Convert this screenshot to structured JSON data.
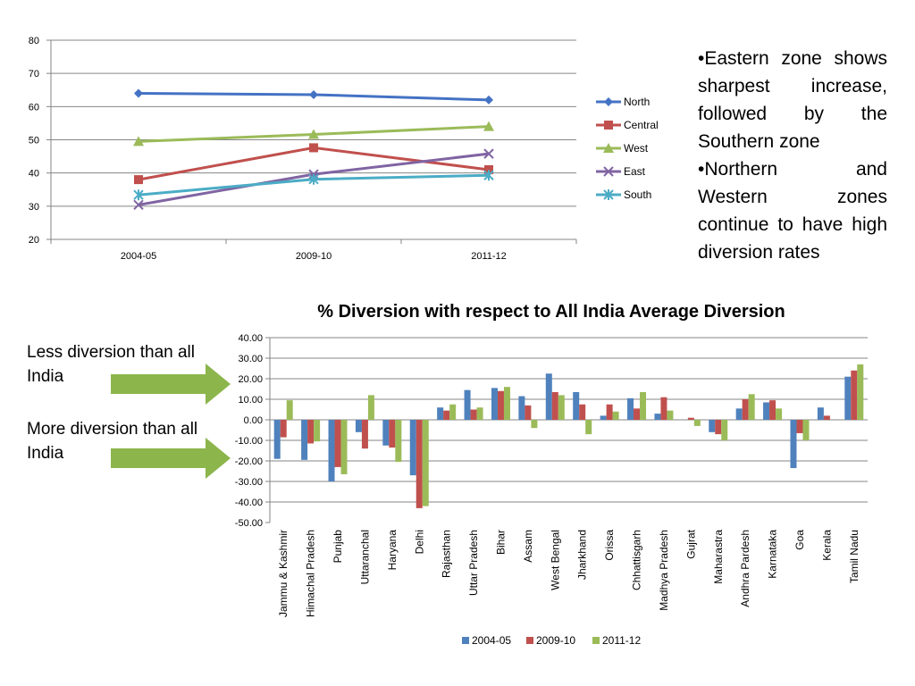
{
  "chart_data": [
    {
      "type": "line",
      "title": "",
      "xlabel": "",
      "ylabel": "",
      "categories": [
        "2004-05",
        "2009-10",
        "2011-12"
      ],
      "ylim": [
        20,
        80
      ],
      "yticks": [
        20,
        30,
        40,
        50,
        60,
        70,
        80
      ],
      "grid": true,
      "legend": "right",
      "series": [
        {
          "name": "North",
          "color": "#4472C4",
          "marker": "diamond",
          "values": [
            64,
            63.6,
            62
          ]
        },
        {
          "name": "Central",
          "color": "#C0504D",
          "marker": "square",
          "values": [
            38,
            47.6,
            41
          ]
        },
        {
          "name": "West",
          "color": "#9BBB59",
          "marker": "triangle",
          "values": [
            49.5,
            51.6,
            54
          ]
        },
        {
          "name": "East",
          "color": "#8064A2",
          "marker": "x",
          "values": [
            30.4,
            39.6,
            45.8
          ]
        },
        {
          "name": "South",
          "color": "#4BACC6",
          "marker": "star",
          "values": [
            33.4,
            38.1,
            39.3
          ]
        }
      ]
    },
    {
      "type": "bar",
      "title": "% Diversion with respect to All India Average Diversion",
      "xlabel": "",
      "ylabel": "",
      "ylim": [
        -50,
        40
      ],
      "yticks": [
        "-50.00",
        "-40.00",
        "-30.00",
        "-20.00",
        "-10.00",
        "0.00",
        "10.00",
        "20.00",
        "30.00",
        "40.00"
      ],
      "grid": true,
      "legend": "bottom",
      "categories": [
        "Jammu & Kashmir",
        "Himachal Pradesh",
        "Punjab",
        "Uttaranchal",
        "Haryana",
        "Delhi",
        "Rajasthan",
        "Uttar Pradesh",
        "Bihar",
        "Assam",
        "West Bengal",
        "Jharkhand",
        "Orissa",
        "Chhattisgarh",
        "Madhya Pradesh",
        "Gujrat",
        "Maharastra",
        "Andhra Pardesh",
        "Karnataka",
        "Goa",
        "Kerala",
        "Tamil Nadu"
      ],
      "series": [
        {
          "name": "2004-05",
          "color": "#4F81BD",
          "values": [
            -19,
            -19.5,
            -30,
            -6,
            -12.5,
            -27,
            6,
            14.5,
            15.5,
            11.5,
            22.5,
            13.5,
            2,
            10.5,
            3,
            0,
            -6,
            5.5,
            8.5,
            -23.5,
            6,
            21
          ]
        },
        {
          "name": "2009-10",
          "color": "#C0504D",
          "values": [
            -8.5,
            -11.5,
            -23,
            -14,
            -13.5,
            -43,
            4.5,
            5,
            14,
            7,
            13.5,
            7.5,
            7.5,
            5.5,
            11,
            1,
            -7,
            10,
            9.5,
            -6.5,
            2,
            24
          ]
        },
        {
          "name": "2011-12",
          "color": "#9BBB59",
          "values": [
            9.5,
            -10.5,
            -26.5,
            12,
            -20.5,
            -42,
            7.5,
            6,
            16,
            -4,
            12,
            -7,
            4,
            13.5,
            4.5,
            -3,
            -10,
            12.5,
            5.5,
            -10,
            0,
            27
          ]
        }
      ]
    }
  ],
  "notes": {
    "line1": "•Eastern zone shows sharpest increase, followed by the Southern zone",
    "line2": "•Northern and Western zones continue to have high diversion rates"
  },
  "left_labels": {
    "less": "Less diversion than all India",
    "more": "More diversion than all India"
  },
  "colors": {
    "arrow": "#8CB54C",
    "grid": "#868686",
    "axis": "#868686"
  }
}
